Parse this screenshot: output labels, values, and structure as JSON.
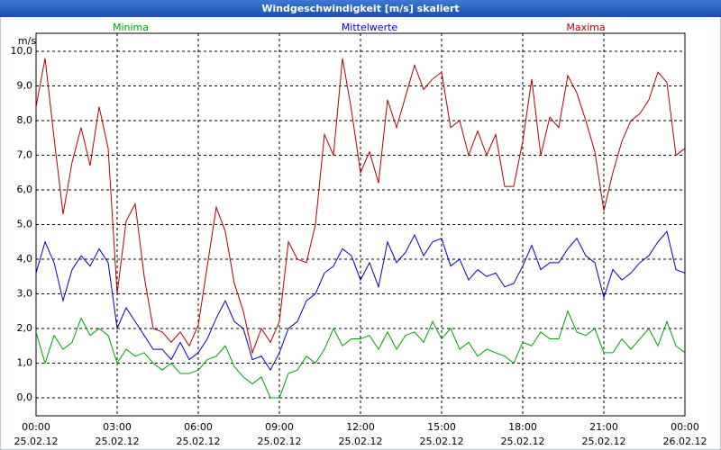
{
  "chart_data": {
    "type": "line",
    "title": "Windgeschwindigkeit [m/s] skaliert",
    "y_unit": "m/s",
    "grid": true,
    "xlim": [
      0,
      1440
    ],
    "xticks": [
      {
        "value": 0,
        "label": "00:00"
      },
      {
        "value": 180,
        "label": "03:00"
      },
      {
        "value": 360,
        "label": "06:00"
      },
      {
        "value": 540,
        "label": "09:00"
      },
      {
        "value": 720,
        "label": "12:00"
      },
      {
        "value": 900,
        "label": "15:00"
      },
      {
        "value": 1080,
        "label": "18:00"
      },
      {
        "value": 1260,
        "label": "21:00"
      },
      {
        "value": 1440,
        "label": "00:00"
      }
    ],
    "xtick_dates": [
      "25.02.12",
      "25.02.12",
      "25.02.12",
      "25.02.12",
      "25.02.12",
      "25.02.12",
      "25.02.12",
      "25.02.12",
      "26.02.12"
    ],
    "ylim": [
      -0.52,
      10.52
    ],
    "yticks": [
      {
        "value": 0,
        "label": "0,0"
      },
      {
        "value": 1,
        "label": "1,0"
      },
      {
        "value": 2,
        "label": "2,0"
      },
      {
        "value": 3,
        "label": "3,0"
      },
      {
        "value": 4,
        "label": "4,0"
      },
      {
        "value": 5,
        "label": "5,0"
      },
      {
        "value": 6,
        "label": "6,0"
      },
      {
        "value": 7,
        "label": "7,0"
      },
      {
        "value": 8,
        "label": "8,0"
      },
      {
        "value": 9,
        "label": "9,0"
      },
      {
        "value": 10,
        "label": "10,0"
      }
    ],
    "x": [
      0,
      20,
      40,
      60,
      80,
      100,
      120,
      140,
      160,
      180,
      200,
      220,
      240,
      260,
      280,
      300,
      320,
      340,
      360,
      380,
      400,
      420,
      440,
      460,
      480,
      500,
      520,
      540,
      560,
      580,
      600,
      620,
      640,
      660,
      680,
      700,
      720,
      740,
      760,
      780,
      800,
      820,
      840,
      860,
      880,
      900,
      920,
      940,
      960,
      980,
      1000,
      1020,
      1040,
      1060,
      1080,
      1100,
      1120,
      1140,
      1160,
      1180,
      1200,
      1220,
      1240,
      1260,
      1280,
      1300,
      1320,
      1340,
      1360,
      1380,
      1400,
      1420,
      1440
    ],
    "series": [
      {
        "name": "Minima",
        "color": "#00a000",
        "values": [
          1.9,
          1.0,
          1.8,
          1.4,
          1.6,
          2.3,
          1.8,
          2.0,
          1.8,
          1.0,
          1.4,
          1.2,
          1.3,
          1.0,
          0.8,
          1.0,
          0.7,
          0.7,
          0.8,
          1.1,
          1.2,
          1.5,
          0.9,
          0.6,
          0.4,
          0.6,
          0.0,
          0.0,
          0.7,
          0.8,
          1.2,
          1.0,
          1.4,
          2.0,
          1.5,
          1.7,
          1.7,
          1.8,
          1.4,
          1.9,
          1.4,
          1.8,
          1.9,
          1.6,
          2.2,
          1.7,
          2.0,
          1.4,
          1.6,
          1.2,
          1.4,
          1.3,
          1.2,
          1.0,
          1.6,
          1.5,
          1.9,
          1.7,
          1.7,
          2.5,
          1.9,
          1.8,
          2.0,
          1.3,
          1.3,
          1.7,
          1.4,
          1.7,
          2.0,
          1.5,
          2.2,
          1.5,
          1.3
        ]
      },
      {
        "name": "Mittelwerte",
        "color": "#0000c0",
        "values": [
          3.6,
          4.5,
          3.9,
          2.8,
          3.7,
          4.1,
          3.8,
          4.3,
          3.9,
          2.0,
          2.6,
          2.2,
          1.8,
          1.4,
          1.4,
          1.1,
          1.6,
          1.1,
          1.3,
          1.7,
          2.3,
          2.8,
          2.2,
          2.0,
          1.1,
          1.2,
          0.8,
          1.3,
          2.0,
          2.2,
          2.8,
          3.0,
          3.6,
          3.8,
          4.3,
          4.1,
          3.4,
          3.9,
          3.2,
          4.5,
          3.9,
          4.2,
          4.7,
          4.1,
          4.5,
          4.6,
          3.8,
          4.0,
          3.4,
          3.7,
          3.5,
          3.6,
          3.2,
          3.3,
          3.8,
          4.4,
          3.7,
          3.9,
          3.9,
          4.3,
          4.6,
          4.1,
          3.9,
          2.9,
          3.7,
          3.4,
          3.6,
          3.9,
          4.1,
          4.5,
          4.8,
          3.7,
          3.6
        ]
      },
      {
        "name": "Maxima",
        "color": "#b00000",
        "values": [
          8.4,
          9.8,
          7.5,
          5.3,
          6.8,
          7.8,
          6.7,
          8.4,
          7.2,
          3.0,
          5.1,
          5.6,
          3.5,
          2.0,
          1.9,
          1.6,
          1.9,
          1.5,
          2.1,
          3.8,
          5.5,
          4.8,
          3.3,
          2.5,
          1.3,
          2.0,
          1.6,
          2.2,
          4.5,
          4.0,
          3.9,
          5.0,
          7.6,
          7.0,
          9.8,
          8.3,
          6.5,
          7.1,
          6.2,
          8.6,
          7.8,
          8.7,
          9.6,
          8.9,
          9.2,
          9.4,
          7.8,
          8.0,
          7.0,
          7.7,
          7.0,
          7.6,
          6.1,
          6.1,
          7.4,
          9.2,
          7.0,
          8.1,
          7.8,
          9.3,
          8.8,
          8.0,
          7.1,
          5.4,
          6.5,
          7.4,
          8.0,
          8.2,
          8.6,
          9.4,
          9.1,
          7.0,
          7.2
        ]
      }
    ]
  }
}
